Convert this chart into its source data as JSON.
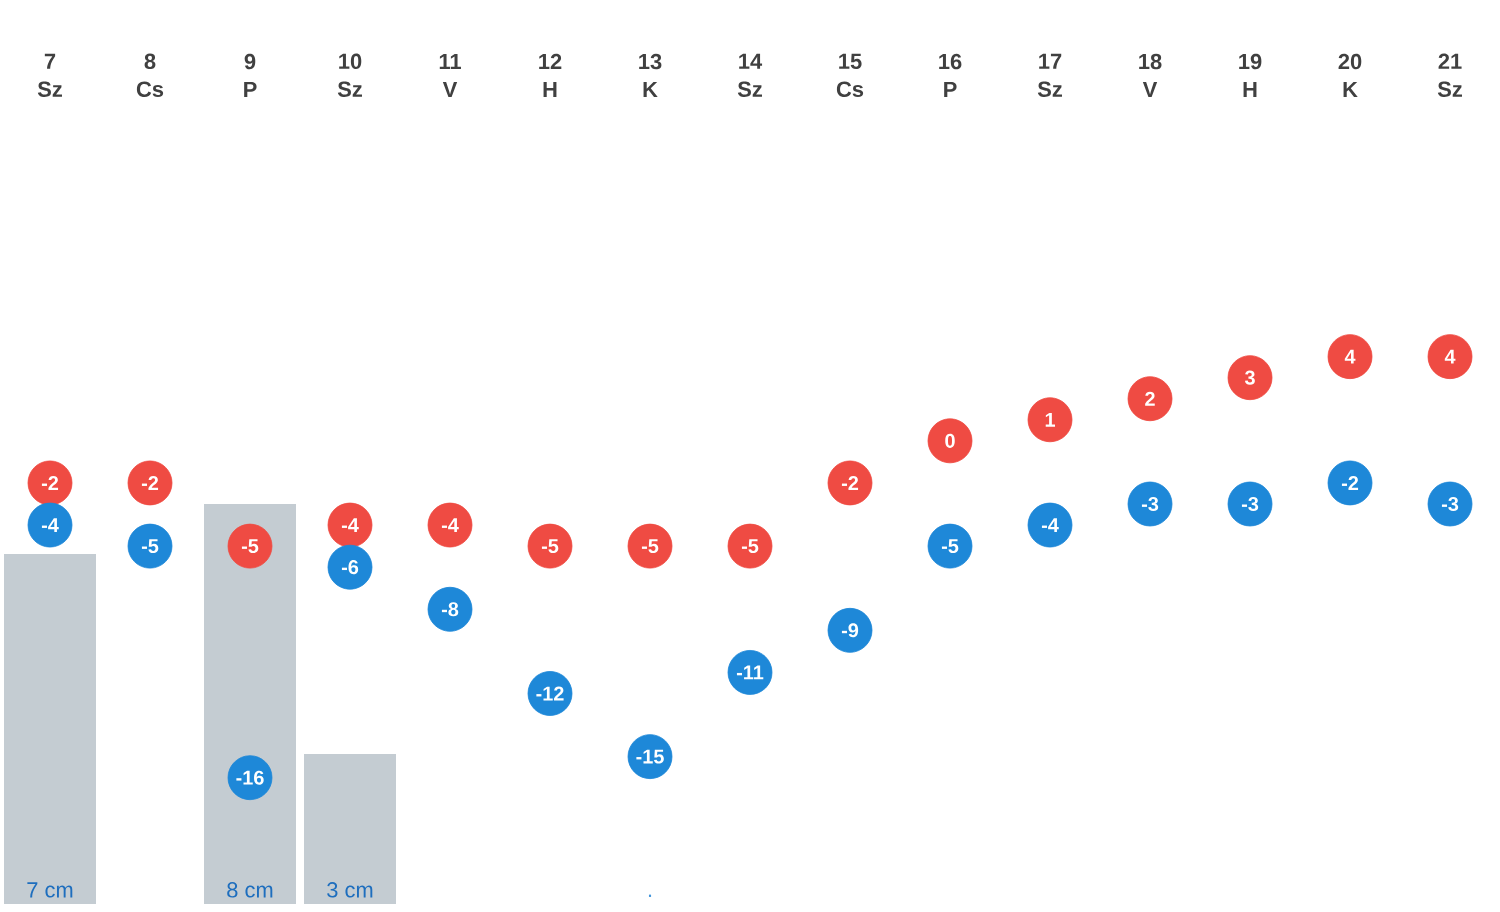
{
  "chart_data": {
    "type": "scatter",
    "categories": [
      "7 Sz",
      "8 Cs",
      "9 P",
      "10 Sz",
      "11 V",
      "12 H",
      "13 K",
      "14 Sz",
      "15 Cs",
      "16 P",
      "17 Sz",
      "18 V",
      "19 H",
      "20 K",
      "21 Sz"
    ],
    "series": [
      {
        "color": "#ef4b43",
        "values": [
          -2,
          -2,
          -5,
          -4,
          -4,
          -5,
          -5,
          -5,
          -2,
          0,
          1,
          2,
          3,
          4,
          4
        ]
      },
      {
        "color": "#1e88d8",
        "values": [
          -4,
          -5,
          -16,
          -6,
          -8,
          -12,
          -15,
          -11,
          -9,
          -5,
          -4,
          -3,
          -3,
          -2,
          -3
        ]
      },
      {
        "type": "bar",
        "axis": "y2",
        "color": "#c4ccd2",
        "values": [
          7,
          null,
          8,
          3,
          null,
          null,
          null,
          null,
          null,
          null,
          null,
          null,
          null,
          null,
          null
        ],
        "value_labels": [
          "7 cm",
          null,
          "8 cm",
          "3 cm",
          null,
          null,
          ".",
          null,
          null,
          null,
          null,
          null,
          null,
          null,
          null
        ]
      }
    ],
    "data_labels": true,
    "marker": "circle"
  }
}
